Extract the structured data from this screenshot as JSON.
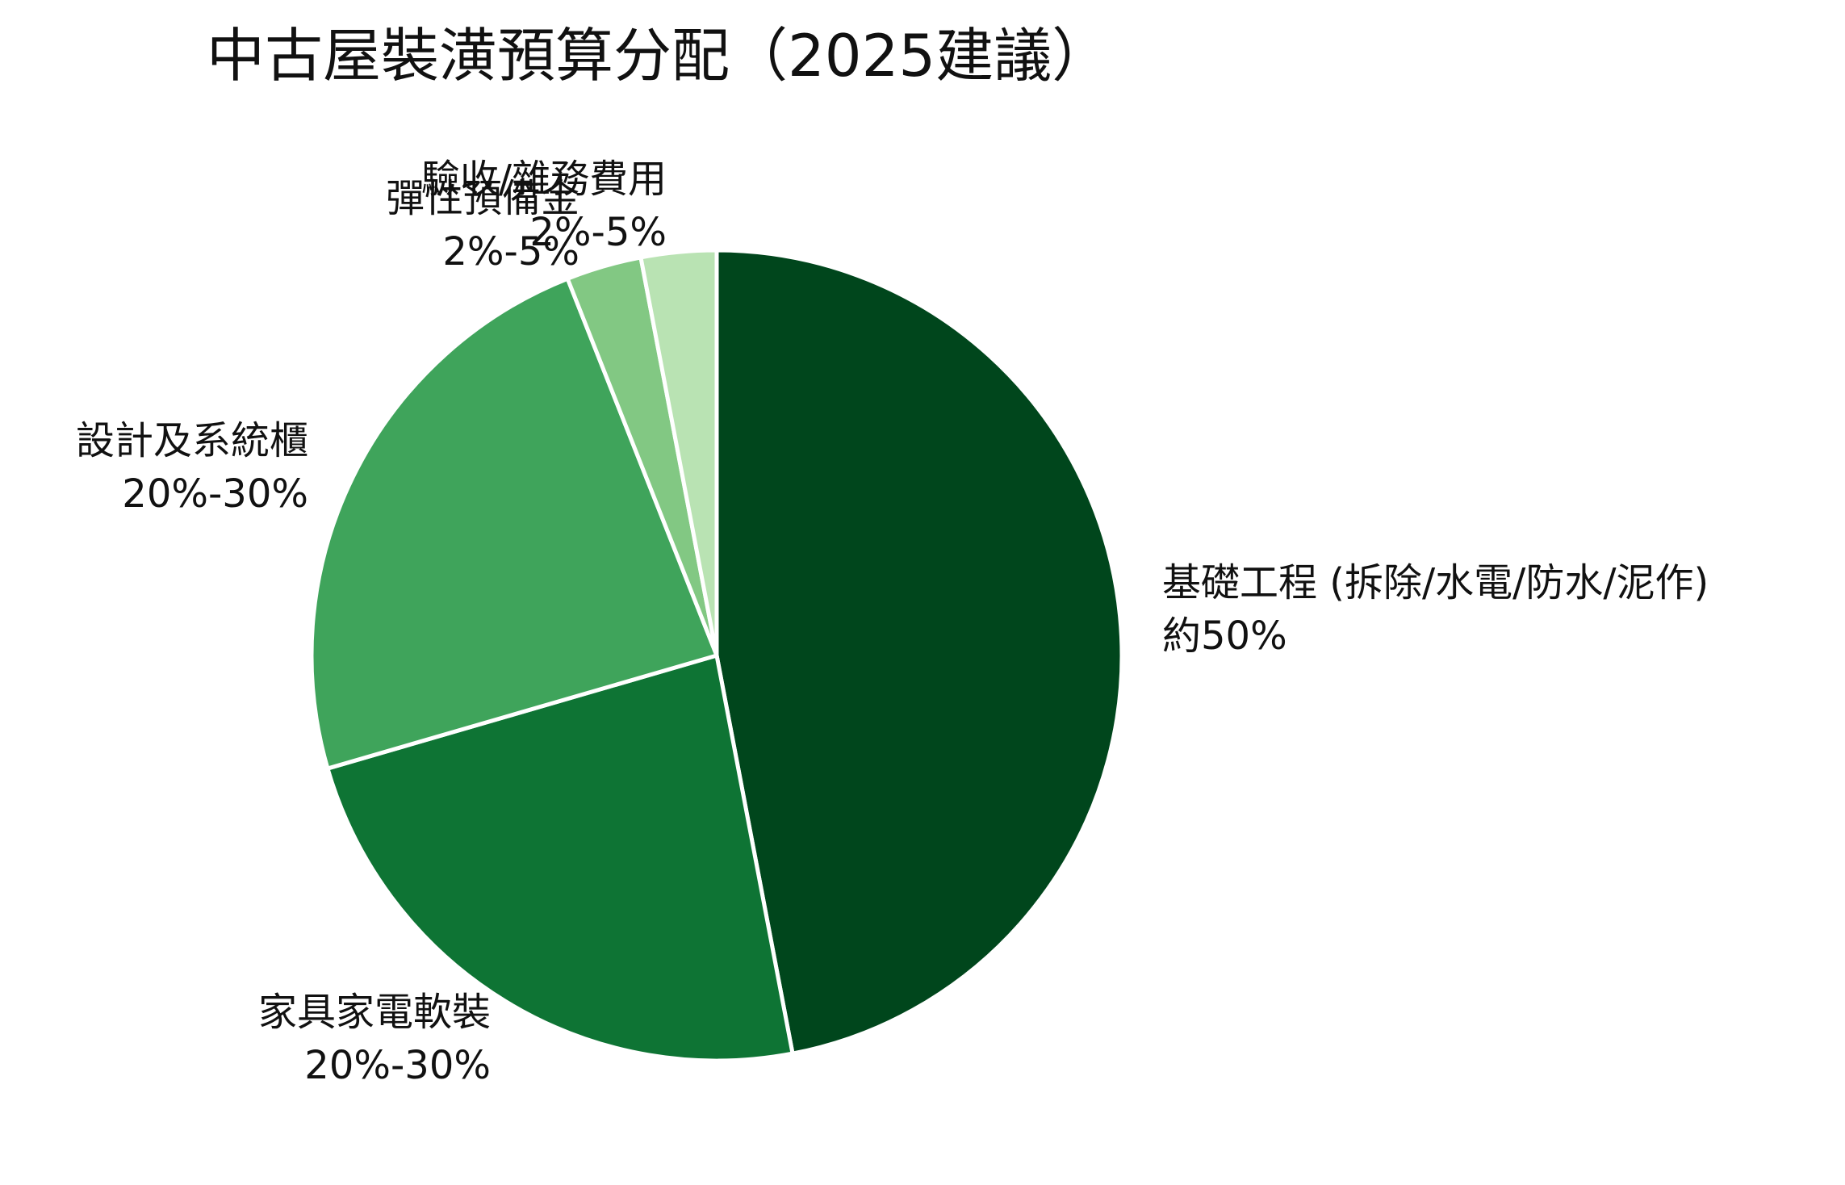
{
  "chart_data": {
    "type": "pie",
    "title": "中古屋裝潢預算分配（2025建議）",
    "slices": [
      {
        "name": "基礎工程 (拆除/水電/防水/泥作)",
        "range_label": "約50%",
        "value": 47,
        "color": "#00461c"
      },
      {
        "name": "家具家電軟裝",
        "range_label": "20%-30%",
        "value": 23.5,
        "color": "#0e7434"
      },
      {
        "name": "設計及系統櫃",
        "range_label": "20%-30%",
        "value": 23.5,
        "color": "#3fa45b"
      },
      {
        "name": "彈性預備金",
        "range_label": "2%-5%",
        "value": 3,
        "color": "#82c883"
      },
      {
        "name": "驗收/雜務費用",
        "range_label": "2%-5%",
        "value": 3,
        "color": "#b9e3b3"
      }
    ],
    "start_angle": "top",
    "direction": "clockwise",
    "legend": "none",
    "slice_border_color": "#ffffff"
  }
}
